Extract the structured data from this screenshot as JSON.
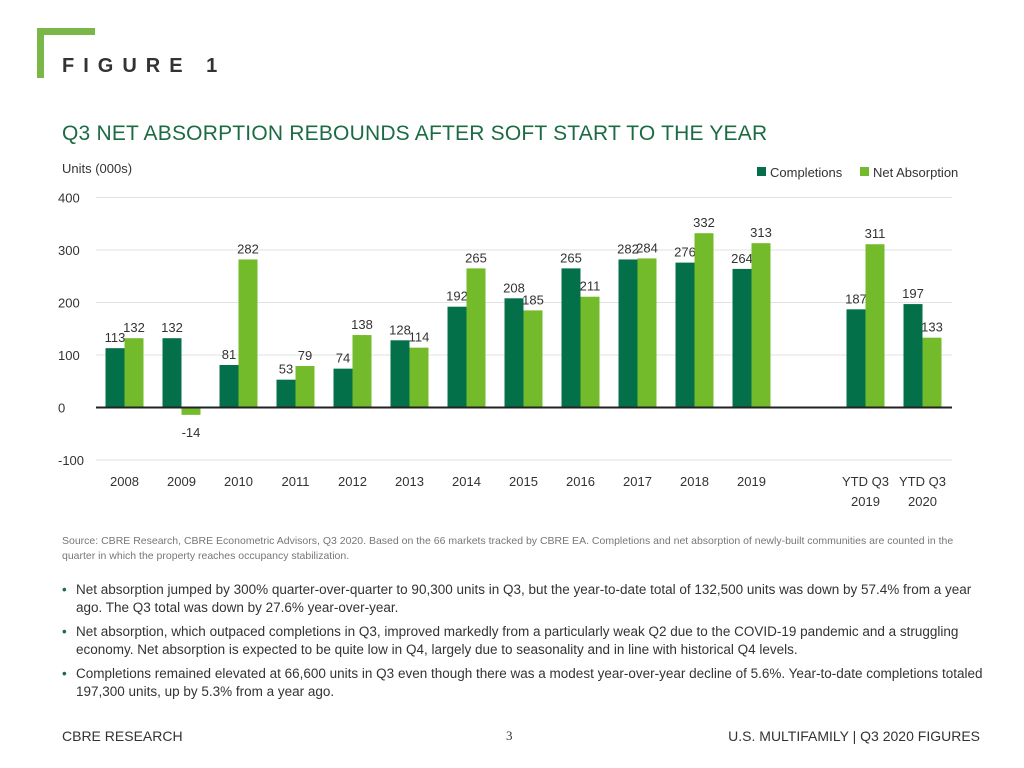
{
  "figure_label": "FIGURE 1",
  "title": "Q3 NET ABSORPTION REBOUNDS AFTER SOFT START TO THE YEAR",
  "source": "Source: CBRE Research, CBRE Econometric Advisors, Q3 2020. Based on the 66 markets tracked by CBRE EA. Completions and net absorption of newly-built communities are counted in the quarter in which the property reaches occupancy stabilization.",
  "bullets": [
    "Net absorption jumped by 300% quarter-over-quarter to 90,300 units in Q3, but the year-to-date total of 132,500 units was down by 57.4% from a year ago. The Q3 total was down by 27.6% year-over-year.",
    "Net absorption, which outpaced completions in Q3, improved markedly from a particularly weak Q2 due to the COVID-19 pandemic and a struggling economy. Net absorption is expected to be quite low in Q4, largely due to seasonality and in line with historical Q4 levels.",
    "Completions remained elevated at 66,600 units in Q3 even though there was a modest year-over-year decline of 5.6%. Year-to-date completions totaled 197,300 units, up by 5.3% from a year ago."
  ],
  "footer": {
    "left": "CBRE RESEARCH",
    "page": "3",
    "right": "U.S. MULTIFAMILY | Q3 2020 FIGURES"
  },
  "colors": {
    "completions": "#04704a",
    "net_absorption": "#74bb2c",
    "title": "#1c6b44",
    "accent": "#7ab648"
  },
  "chart_data": {
    "type": "bar",
    "ylabel": "Units (000s)",
    "ylim": [
      -100,
      400
    ],
    "yticks": [
      "-100",
      "0",
      "100",
      "200",
      "300",
      "400"
    ],
    "legend_position": "top-right",
    "categories": [
      "2008",
      "2009",
      "2010",
      "2011",
      "2012",
      "2013",
      "2014",
      "2015",
      "2016",
      "2017",
      "2018",
      "2019",
      "",
      "YTD Q3\n2019",
      "YTD Q3\n2020"
    ],
    "series": [
      {
        "name": "Completions",
        "values": [
          113,
          132,
          81,
          53,
          74,
          128,
          192,
          208,
          265,
          282,
          276,
          264,
          null,
          187,
          197
        ]
      },
      {
        "name": "Net Absorption",
        "values": [
          132,
          -14,
          282,
          79,
          138,
          114,
          265,
          185,
          211,
          284,
          332,
          313,
          null,
          311,
          133
        ]
      }
    ]
  }
}
